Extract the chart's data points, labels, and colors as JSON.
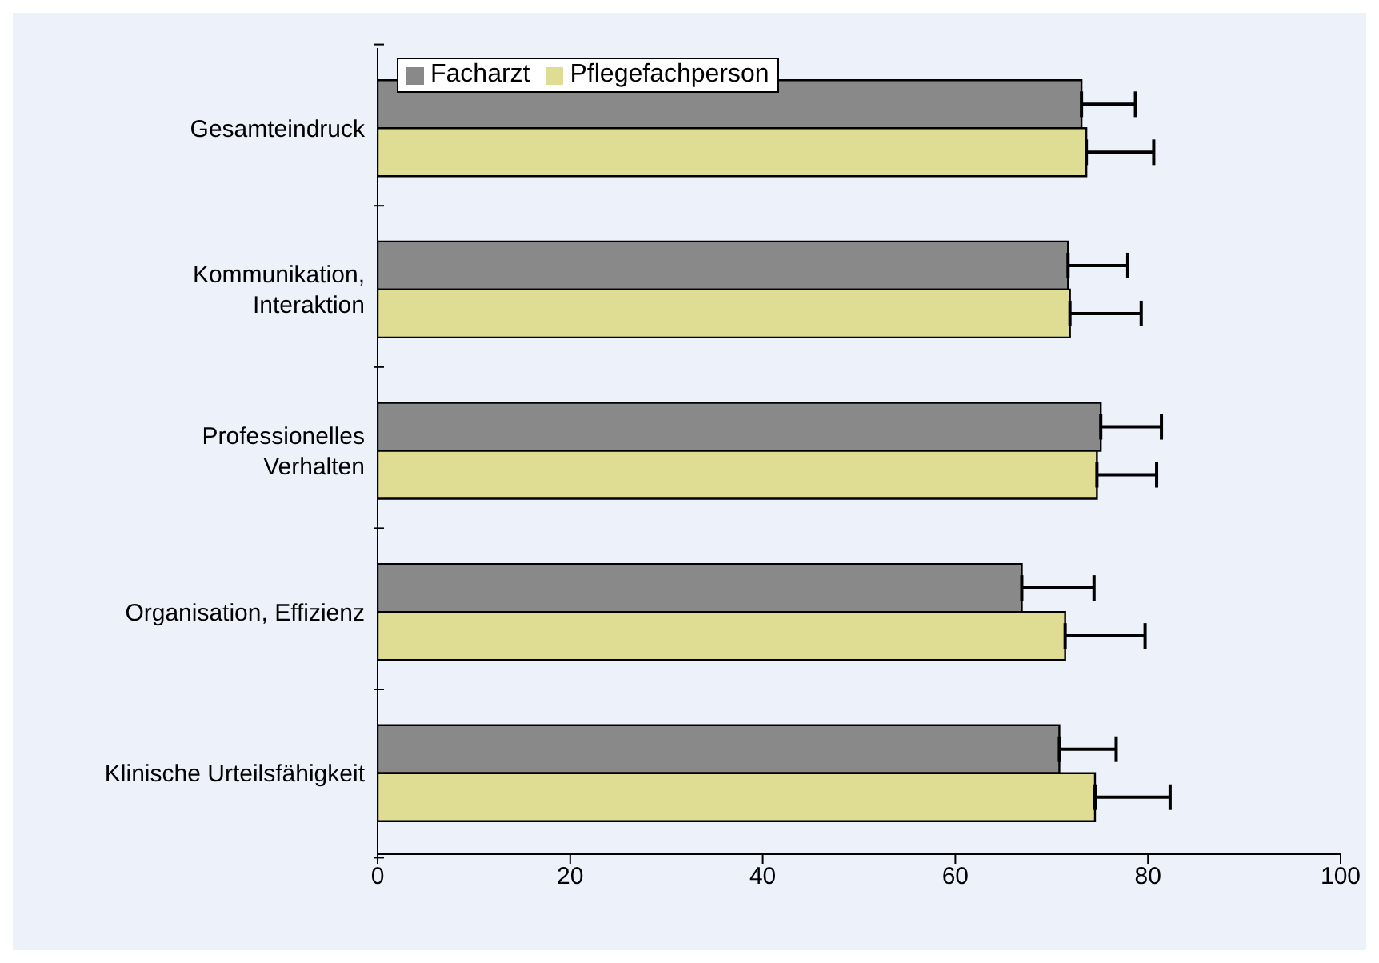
{
  "chart_data": {
    "type": "bar",
    "orientation": "horizontal",
    "categories": [
      "Gesamteindruck",
      "Kommunikation,\nInteraktion",
      "Professionelles\nVerhalten",
      "Organisation, Effizienz",
      "Klinische Urteilsfähigkeit"
    ],
    "series": [
      {
        "name": "Facharzt",
        "color": "#898989",
        "values": [
          73.1,
          71.7,
          75.1,
          66.9,
          70.8
        ],
        "errors": [
          5.6,
          6.2,
          6.3,
          7.5,
          5.9
        ]
      },
      {
        "name": "Pflegefachperson",
        "color": "#dfdc94",
        "values": [
          73.6,
          71.9,
          74.7,
          71.4,
          74.5
        ],
        "errors": [
          7.0,
          7.4,
          6.2,
          8.3,
          7.8
        ]
      }
    ],
    "xlim": [
      0,
      100
    ],
    "xticks": [
      0,
      20,
      40,
      60,
      80,
      100
    ],
    "legend": "top left",
    "grid": false
  }
}
